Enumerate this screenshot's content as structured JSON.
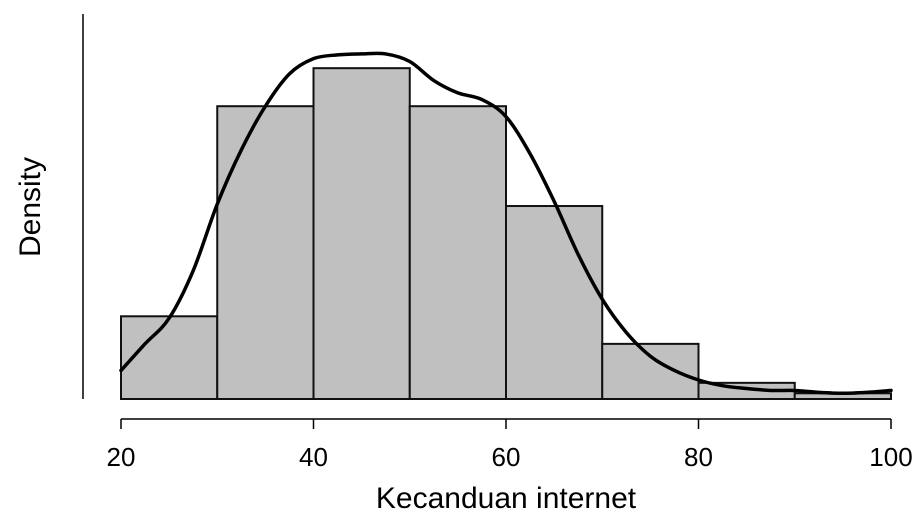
{
  "chart_data": {
    "type": "bar",
    "xlabel": "Kecanduan internet",
    "ylabel": "Density",
    "xlim": [
      20,
      100
    ],
    "x_ticks": [
      20,
      40,
      60,
      80,
      100
    ],
    "y_ticks_shown": false,
    "grid": false,
    "bar_color": "#c0c0c0",
    "bar_edge_color": "#111111",
    "curve_color": "#000000",
    "bins": [
      {
        "start": 20,
        "end": 30,
        "density": 0.0087
      },
      {
        "start": 30,
        "end": 40,
        "density": 0.0308
      },
      {
        "start": 40,
        "end": 50,
        "density": 0.0348
      },
      {
        "start": 50,
        "end": 60,
        "density": 0.0308
      },
      {
        "start": 60,
        "end": 70,
        "density": 0.0203
      },
      {
        "start": 70,
        "end": 80,
        "density": 0.0058
      },
      {
        "start": 80,
        "end": 90,
        "density": 0.0017
      },
      {
        "start": 90,
        "end": 100,
        "density": 0.0006
      }
    ],
    "density_curve": {
      "x": [
        20,
        22.5,
        25,
        27.5,
        30,
        32.5,
        35,
        37.5,
        40,
        42.5,
        45,
        47.5,
        50,
        52.5,
        55,
        57.5,
        60,
        62.5,
        65,
        67.5,
        70,
        72.5,
        75,
        77.5,
        80,
        82.5,
        85,
        87.5,
        90,
        92.5,
        95,
        97.5,
        100
      ],
      "y": [
        0.003,
        0.0058,
        0.0085,
        0.0135,
        0.0205,
        0.0262,
        0.0308,
        0.0342,
        0.0358,
        0.0362,
        0.0363,
        0.0363,
        0.0355,
        0.0335,
        0.0322,
        0.0315,
        0.0297,
        0.0258,
        0.0208,
        0.0152,
        0.0105,
        0.007,
        0.0045,
        0.003,
        0.002,
        0.0014,
        0.0011,
        0.0009,
        0.0009,
        0.0007,
        0.0006,
        0.0007,
        0.0009
      ]
    }
  }
}
